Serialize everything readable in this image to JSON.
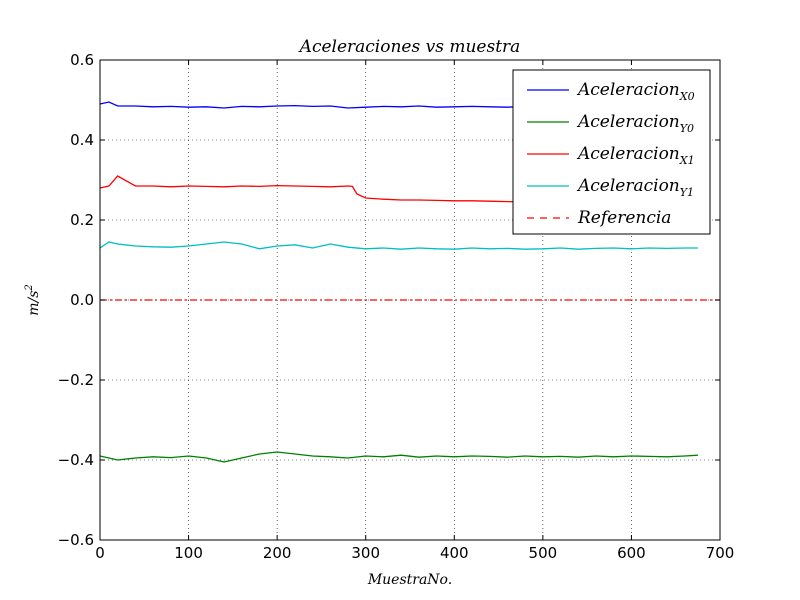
{
  "chart_data": {
    "type": "line",
    "title": "Aceleraciones vs muestra",
    "xlabel": "MuestraNo.",
    "ylabel": "m/s",
    "ylabel_superscript": "2",
    "xlim": [
      0,
      700
    ],
    "ylim": [
      -0.6,
      0.6
    ],
    "x_ticks": [
      0,
      100,
      200,
      300,
      400,
      500,
      600,
      700
    ],
    "y_ticks": [
      -0.6,
      -0.4,
      -0.2,
      0.0,
      0.2,
      0.4,
      0.6
    ],
    "x_tick_labels": [
      "0",
      "100",
      "200",
      "300",
      "400",
      "500",
      "600",
      "700"
    ],
    "y_tick_labels": [
      "−0.6",
      "−0.4",
      "−0.2",
      "0.0",
      "0.2",
      "0.4",
      "0.6"
    ],
    "grid": true,
    "legend_position": "top-right",
    "series": [
      {
        "name": "Aceleracion",
        "subscript": "X0",
        "color": "#0000ff",
        "style": "solid",
        "x": [
          0,
          10,
          20,
          40,
          60,
          80,
          100,
          120,
          140,
          160,
          180,
          200,
          220,
          240,
          260,
          280,
          300,
          320,
          340,
          360,
          380,
          400,
          420,
          440,
          460,
          480,
          500,
          520,
          540,
          560,
          580,
          600,
          620,
          640,
          660,
          675
        ],
        "y": [
          0.49,
          0.495,
          0.485,
          0.485,
          0.483,
          0.484,
          0.482,
          0.483,
          0.48,
          0.484,
          0.483,
          0.485,
          0.486,
          0.484,
          0.485,
          0.48,
          0.482,
          0.484,
          0.483,
          0.485,
          0.482,
          0.483,
          0.484,
          0.483,
          0.482,
          0.484,
          0.483,
          0.484,
          0.483,
          0.482,
          0.484,
          0.483,
          0.482,
          0.483,
          0.484,
          0.483
        ]
      },
      {
        "name": "Aceleracion",
        "subscript": "Y0",
        "color": "#008000",
        "style": "solid",
        "x": [
          0,
          10,
          20,
          40,
          60,
          80,
          100,
          120,
          140,
          160,
          180,
          200,
          220,
          240,
          260,
          280,
          300,
          320,
          340,
          360,
          380,
          400,
          420,
          440,
          460,
          480,
          500,
          520,
          540,
          560,
          580,
          600,
          620,
          640,
          660,
          675
        ],
        "y": [
          -0.39,
          -0.395,
          -0.4,
          -0.395,
          -0.392,
          -0.394,
          -0.39,
          -0.395,
          -0.405,
          -0.395,
          -0.385,
          -0.38,
          -0.385,
          -0.39,
          -0.392,
          -0.395,
          -0.39,
          -0.392,
          -0.388,
          -0.393,
          -0.39,
          -0.392,
          -0.39,
          -0.391,
          -0.393,
          -0.39,
          -0.392,
          -0.391,
          -0.393,
          -0.39,
          -0.392,
          -0.39,
          -0.391,
          -0.392,
          -0.39,
          -0.388
        ]
      },
      {
        "name": "Aceleracion",
        "subscript": "X1",
        "color": "#ff0000",
        "style": "solid",
        "x": [
          0,
          10,
          20,
          40,
          60,
          80,
          100,
          120,
          140,
          160,
          180,
          200,
          220,
          240,
          260,
          280,
          285,
          290,
          300,
          320,
          340,
          360,
          380,
          400,
          420,
          440,
          460,
          480,
          500,
          520
        ],
        "y": [
          0.28,
          0.285,
          0.31,
          0.285,
          0.285,
          0.283,
          0.285,
          0.284,
          0.283,
          0.285,
          0.284,
          0.286,
          0.285,
          0.284,
          0.283,
          0.285,
          0.284,
          0.265,
          0.255,
          0.252,
          0.25,
          0.25,
          0.249,
          0.248,
          0.248,
          0.247,
          0.246,
          0.245,
          0.246,
          0.245
        ]
      },
      {
        "name": "Aceleracion",
        "subscript": "Y1",
        "color": "#00bfbf",
        "style": "solid",
        "x": [
          0,
          10,
          20,
          40,
          60,
          80,
          100,
          120,
          140,
          160,
          180,
          200,
          220,
          240,
          260,
          280,
          300,
          320,
          340,
          360,
          380,
          400,
          420,
          440,
          460,
          480,
          500,
          520,
          540,
          560,
          580,
          600,
          620,
          640,
          660,
          675
        ],
        "y": [
          0.13,
          0.145,
          0.14,
          0.135,
          0.133,
          0.132,
          0.135,
          0.14,
          0.145,
          0.14,
          0.128,
          0.135,
          0.138,
          0.13,
          0.14,
          0.132,
          0.128,
          0.13,
          0.127,
          0.13,
          0.128,
          0.127,
          0.13,
          0.128,
          0.129,
          0.127,
          0.128,
          0.13,
          0.127,
          0.129,
          0.13,
          0.128,
          0.13,
          0.129,
          0.13,
          0.13
        ]
      },
      {
        "name": "Referencia",
        "subscript": "",
        "color": "#ff0000",
        "style": "dashdot",
        "x": [
          0,
          700
        ],
        "y": [
          0.0,
          0.0
        ]
      }
    ]
  }
}
